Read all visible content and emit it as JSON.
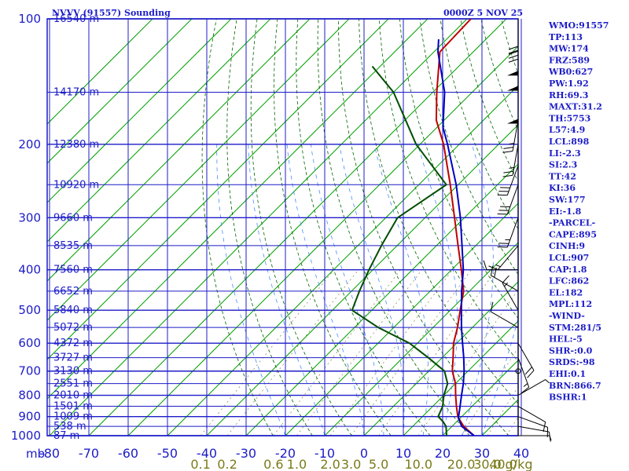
{
  "chart_data": {
    "type": "skew-t sounding",
    "title": "NVVV (91557) Sounding",
    "datetime": "0000Z  5 NOV 25",
    "y_axis": {
      "quantity": "pressure",
      "unit_label": "mb",
      "range": [
        1000,
        100
      ],
      "scale": "log",
      "ticks": [
        100,
        200,
        300,
        400,
        500,
        600,
        700,
        800,
        900,
        1000
      ]
    },
    "x_axis": {
      "quantity": "temperature",
      "unit": "C",
      "ticks": [
        -80,
        -70,
        -60,
        -50,
        -40,
        -30,
        -20,
        -10,
        0,
        10,
        20,
        30,
        40
      ]
    },
    "mixing_ratio_axis": {
      "unit_label": "g/kg",
      "ticks": [
        "0.1",
        "0.2",
        "0.6",
        "1.0",
        "2.0",
        "3.0",
        "5.0",
        "10.0",
        "20.0",
        "30.0",
        "40.0"
      ]
    },
    "height_labels": [
      {
        "p": 100,
        "label": "16540 m"
      },
      {
        "p": 150,
        "label": "14170 m"
      },
      {
        "p": 200,
        "label": "12380 m"
      },
      {
        "p": 250,
        "label": "10920 m"
      },
      {
        "p": 300,
        "label": "9660 m"
      },
      {
        "p": 350,
        "label": "8535 m"
      },
      {
        "p": 400,
        "label": "7560 m"
      },
      {
        "p": 450,
        "label": "6652 m"
      },
      {
        "p": 500,
        "label": "5840 m"
      },
      {
        "p": 550,
        "label": "5072 m"
      },
      {
        "p": 600,
        "label": "4372 m"
      },
      {
        "p": 650,
        "label": "3727 m"
      },
      {
        "p": 700,
        "label": "3130 m"
      },
      {
        "p": 750,
        "label": "2551 m"
      },
      {
        "p": 800,
        "label": "2010 m"
      },
      {
        "p": 850,
        "label": "1501 m"
      },
      {
        "p": 900,
        "label": "1009 m"
      },
      {
        "p": 950,
        "label": "538 m"
      },
      {
        "p": 1000,
        "label": "87 m"
      }
    ],
    "series": [
      {
        "name": "temperature",
        "color": "#c00000",
        "points": [
          {
            "p": 1000,
            "t": 28
          },
          {
            "p": 950,
            "t": 23
          },
          {
            "p": 925,
            "t": 21
          },
          {
            "p": 900,
            "t": 19
          },
          {
            "p": 850,
            "t": 16
          },
          {
            "p": 800,
            "t": 13
          },
          {
            "p": 750,
            "t": 10
          },
          {
            "p": 700,
            "t": 6
          },
          {
            "p": 650,
            "t": 2.8
          },
          {
            "p": 600,
            "t": -0.8
          },
          {
            "p": 550,
            "t": -3.8
          },
          {
            "p": 500,
            "t": -7.5
          },
          {
            "p": 450,
            "t": -11.5
          },
          {
            "p": 400,
            "t": -17.5
          },
          {
            "p": 350,
            "t": -24.5
          },
          {
            "p": 300,
            "t": -32.5
          },
          {
            "p": 250,
            "t": -42
          },
          {
            "p": 200,
            "t": -54
          },
          {
            "p": 175,
            "t": -62
          },
          {
            "p": 150,
            "t": -69
          },
          {
            "p": 120,
            "t": -78.5
          },
          {
            "p": 100,
            "t": -79
          }
        ]
      },
      {
        "name": "dewpoint",
        "color": "#004d00",
        "points": [
          {
            "p": 1000,
            "t": 21
          },
          {
            "p": 950,
            "t": 18.5
          },
          {
            "p": 925,
            "t": 16.5
          },
          {
            "p": 900,
            "t": 14
          },
          {
            "p": 850,
            "t": 12.5
          },
          {
            "p": 800,
            "t": 10
          },
          {
            "p": 750,
            "t": 8
          },
          {
            "p": 700,
            "t": 4
          },
          {
            "p": 650,
            "t": -3.5
          },
          {
            "p": 600,
            "t": -12
          },
          {
            "p": 550,
            "t": -24
          },
          {
            "p": 500,
            "t": -35
          },
          {
            "p": 450,
            "t": -38
          },
          {
            "p": 400,
            "t": -41
          },
          {
            "p": 350,
            "t": -44
          },
          {
            "p": 300,
            "t": -47
          },
          {
            "p": 250,
            "t": -43
          },
          {
            "p": 200,
            "t": -61
          },
          {
            "p": 150,
            "t": -80
          },
          {
            "p": 130,
            "t": -92
          }
        ]
      },
      {
        "name": "parcel",
        "color": "#0000c0",
        "points": [
          {
            "p": 1000,
            "t": 28
          },
          {
            "p": 950,
            "t": 22.5
          },
          {
            "p": 907,
            "t": 19.5
          },
          {
            "p": 862,
            "t": 17.5
          },
          {
            "p": 800,
            "t": 14.5
          },
          {
            "p": 750,
            "t": 12
          },
          {
            "p": 700,
            "t": 9
          },
          {
            "p": 650,
            "t": 5.5
          },
          {
            "p": 600,
            "t": 1.5
          },
          {
            "p": 550,
            "t": -2.8
          },
          {
            "p": 500,
            "t": -7.2
          },
          {
            "p": 450,
            "t": -12
          },
          {
            "p": 400,
            "t": -17
          },
          {
            "p": 350,
            "t": -23.5
          },
          {
            "p": 300,
            "t": -31
          },
          {
            "p": 250,
            "t": -40.5
          },
          {
            "p": 200,
            "t": -53
          },
          {
            "p": 182,
            "t": -58.5
          },
          {
            "p": 150,
            "t": -67
          },
          {
            "p": 120,
            "t": -79
          },
          {
            "p": 112,
            "t": -82
          }
        ]
      }
    ],
    "wind_barbs": [
      {
        "p": 1000,
        "dir": 90,
        "kt": 5
      },
      {
        "p": 950,
        "dir": 100,
        "kt": 10
      },
      {
        "p": 900,
        "dir": 110,
        "kt": 10
      },
      {
        "p": 850,
        "dir": 120,
        "kt": 10
      },
      {
        "p": 800,
        "dir": 60,
        "kt": 5
      },
      {
        "p": 700,
        "dir": 0,
        "kt": 0
      },
      {
        "p": 650,
        "dir": 160,
        "kt": 15
      },
      {
        "p": 600,
        "dir": 150,
        "kt": 20
      },
      {
        "p": 550,
        "dir": 300,
        "kt": 10
      },
      {
        "p": 500,
        "dir": 330,
        "kt": 15
      },
      {
        "p": 450,
        "dir": 300,
        "kt": 20
      },
      {
        "p": 400,
        "dir": 270,
        "kt": 10
      },
      {
        "p": 350,
        "dir": 220,
        "kt": 15
      },
      {
        "p": 300,
        "dir": 200,
        "kt": 25
      },
      {
        "p": 250,
        "dir": 200,
        "kt": 30
      },
      {
        "p": 225,
        "dir": 200,
        "kt": 30
      },
      {
        "p": 200,
        "dir": 190,
        "kt": 25
      },
      {
        "p": 175,
        "dir": 190,
        "kt": 25
      },
      {
        "p": 150,
        "dir": 180,
        "kt": 50
      },
      {
        "p": 125,
        "dir": 180,
        "kt": 50
      },
      {
        "p": 115,
        "dir": 180,
        "kt": 50
      },
      {
        "p": 105,
        "dir": 180,
        "kt": 30
      },
      {
        "p": 100,
        "dir": 180,
        "kt": 20
      }
    ],
    "indices": [
      "WMO:91557",
      "TP:113",
      "MW:174",
      "FRZ:589",
      "WB0:627",
      "PW:1.92",
      "RH:69.3",
      "MAXT:31.2",
      "TH:5753",
      "L57:4.9",
      "LCL:898",
      "LI:-2.3",
      "SI:2.3",
      "TT:42",
      "KI:36",
      "SW:177",
      "EI:-1.8",
      "-PARCEL-",
      "CAPE:895",
      "CINH:9",
      "LCL:907",
      "CAP:1.8",
      "LFC:862",
      "EL:182",
      "MPL:112",
      "-WIND-",
      "STM:281/5",
      "HEL:-5",
      "SHR-:0.0",
      "SRDS:-98",
      "EHI:0.1",
      "BRN:866.7",
      "BSHR:1"
    ]
  },
  "colors": {
    "frame": "#1c1cc8",
    "isotherm": "#00a000",
    "dry_adiabat": "#006400",
    "moist_adiabat": "#4a8cff",
    "mixing_label": "#7a7a1a"
  }
}
